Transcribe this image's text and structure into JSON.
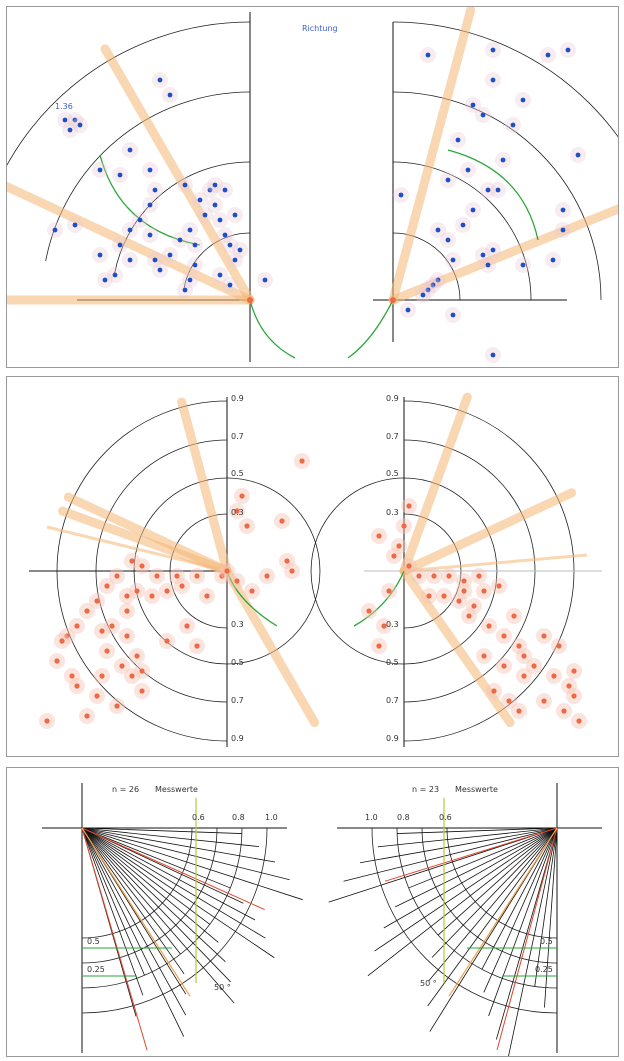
{
  "chart_data": [
    {
      "type": "scatter",
      "title": "Richtung",
      "subtitle_label": "1.36",
      "series": [
        {
          "values": [
            [
              -185,
              -180
            ],
            [
              -180,
              -170
            ],
            [
              -175,
              -180
            ],
            [
              -170,
              -175
            ],
            [
              -150,
              -130
            ],
            [
              -130,
              -125
            ],
            [
              -120,
              -150
            ],
            [
              -100,
              -130
            ],
            [
              -90,
              -220
            ],
            [
              -80,
              -205
            ],
            [
              -100,
              -95
            ],
            [
              -95,
              -110
            ],
            [
              -110,
              -80
            ],
            [
              -120,
              -70
            ],
            [
              -130,
              -55
            ],
            [
              -150,
              -45
            ],
            [
              -145,
              -20
            ],
            [
              -135,
              -25
            ],
            [
              -120,
              -40
            ],
            [
              -100,
              -65
            ],
            [
              -95,
              -40
            ],
            [
              -90,
              -30
            ],
            [
              -80,
              -45
            ],
            [
              -70,
              -60
            ],
            [
              -60,
              -70
            ],
            [
              -55,
              -55
            ],
            [
              -45,
              -85
            ],
            [
              -40,
              -110
            ],
            [
              -35,
              -95
            ],
            [
              -30,
              -80
            ],
            [
              -25,
              -65
            ],
            [
              -20,
              -55
            ],
            [
              -15,
              -40
            ],
            [
              -10,
              -50
            ],
            [
              -55,
              -35
            ],
            [
              -60,
              -20
            ],
            [
              -65,
              -10
            ],
            [
              -30,
              -25
            ],
            [
              -20,
              -15
            ],
            [
              -35,
              -115
            ],
            [
              15,
              -20
            ],
            [
              -65,
              -115
            ],
            [
              -50,
              -100
            ],
            [
              -25,
              -110
            ],
            [
              -15,
              -85
            ],
            [
              -195,
              -70
            ],
            [
              -175,
              -75
            ]
          ]
        },
        {
          "values": [
            [
              35,
              -245
            ],
            [
              100,
              -250
            ],
            [
              155,
              -245
            ],
            [
              175,
              -250
            ],
            [
              130,
              -200
            ],
            [
              100,
              -220
            ],
            [
              80,
              -195
            ],
            [
              120,
              -175
            ],
            [
              90,
              -185
            ],
            [
              65,
              -160
            ],
            [
              75,
              -130
            ],
            [
              55,
              -120
            ],
            [
              110,
              -140
            ],
            [
              105,
              -110
            ],
            [
              95,
              -110
            ],
            [
              45,
              -70
            ],
            [
              55,
              -60
            ],
            [
              60,
              -40
            ],
            [
              70,
              -75
            ],
            [
              80,
              -90
            ],
            [
              90,
              -45
            ],
            [
              95,
              -35
            ],
            [
              100,
              -50
            ],
            [
              130,
              -35
            ],
            [
              160,
              -40
            ],
            [
              45,
              -20
            ],
            [
              40,
              -15
            ],
            [
              35,
              -10
            ],
            [
              30,
              -5
            ],
            [
              185,
              -145
            ],
            [
              170,
              -90
            ],
            [
              15,
              10
            ],
            [
              60,
              15
            ],
            [
              100,
              55
            ],
            [
              8,
              -105
            ],
            [
              170,
              -70
            ]
          ]
        }
      ],
      "rays_deg_left": [
        120,
        155,
        180
      ],
      "rays_deg_right": [
        75,
        22
      ]
    },
    {
      "type": "scatter",
      "tick_labels": [
        "0.9",
        "0.7",
        "0.5",
        "0.3",
        "0.3",
        "0.5",
        "0.7",
        "0.9"
      ],
      "series": [
        {
          "values": [
            [
              75,
              -110
            ],
            [
              15,
              -75
            ],
            [
              10,
              -60
            ],
            [
              20,
              -45
            ],
            [
              55,
              -50
            ],
            [
              60,
              -10
            ],
            [
              65,
              0
            ],
            [
              40,
              5
            ],
            [
              -30,
              5
            ],
            [
              -50,
              5
            ],
            [
              -70,
              5
            ],
            [
              -85,
              -5
            ],
            [
              -95,
              -10
            ],
            [
              -110,
              5
            ],
            [
              -120,
              15
            ],
            [
              -130,
              30
            ],
            [
              -140,
              40
            ],
            [
              -150,
              55
            ],
            [
              -160,
              65
            ],
            [
              -115,
              55
            ],
            [
              -100,
              65
            ],
            [
              -90,
              85
            ],
            [
              -85,
              100
            ],
            [
              -120,
              80
            ],
            [
              -100,
              40
            ],
            [
              -75,
              25
            ],
            [
              -60,
              20
            ],
            [
              -45,
              15
            ],
            [
              -20,
              25
            ],
            [
              -5,
              5
            ],
            [
              0,
              0
            ],
            [
              10,
              10
            ],
            [
              25,
              20
            ],
            [
              -165,
              70
            ],
            [
              -170,
              90
            ],
            [
              -155,
              105
            ],
            [
              -150,
              115
            ],
            [
              -130,
              125
            ],
            [
              -110,
              135
            ],
            [
              -140,
              145
            ],
            [
              -180,
              150
            ],
            [
              -85,
              120
            ],
            [
              -60,
              70
            ],
            [
              -40,
              55
            ],
            [
              -30,
              75
            ],
            [
              -95,
              105
            ],
            [
              -105,
              95
            ],
            [
              -125,
              105
            ],
            [
              -125,
              60
            ],
            [
              -100,
              25
            ],
            [
              -90,
              20
            ]
          ]
        },
        {
          "values": [
            [
              5,
              -65
            ],
            [
              0,
              -45
            ],
            [
              -5,
              -25
            ],
            [
              -25,
              -35
            ],
            [
              -10,
              -15
            ],
            [
              5,
              -5
            ],
            [
              15,
              5
            ],
            [
              30,
              5
            ],
            [
              45,
              5
            ],
            [
              60,
              10
            ],
            [
              75,
              5
            ],
            [
              80,
              20
            ],
            [
              60,
              20
            ],
            [
              40,
              25
            ],
            [
              25,
              25
            ],
            [
              70,
              35
            ],
            [
              55,
              30
            ],
            [
              95,
              15
            ],
            [
              100,
              65
            ],
            [
              115,
              75
            ],
            [
              120,
              85
            ],
            [
              130,
              95
            ],
            [
              150,
              105
            ],
            [
              165,
              115
            ],
            [
              170,
              125
            ],
            [
              120,
              105
            ],
            [
              100,
              95
            ],
            [
              80,
              85
            ],
            [
              90,
              120
            ],
            [
              105,
              130
            ],
            [
              115,
              140
            ],
            [
              140,
              130
            ],
            [
              160,
              140
            ],
            [
              175,
              150
            ],
            [
              170,
              100
            ],
            [
              155,
              75
            ],
            [
              140,
              65
            ],
            [
              -15,
              20
            ],
            [
              -35,
              40
            ],
            [
              -20,
              55
            ],
            [
              -25,
              75
            ],
            [
              85,
              55
            ],
            [
              65,
              45
            ],
            [
              110,
              45
            ]
          ]
        }
      ]
    },
    {
      "type": "line",
      "left": {
        "label": "n = 26",
        "label2": "Messwerte",
        "ticks": [
          "0.6",
          "0.8",
          "1.0"
        ],
        "markers": [
          "0.5",
          "0.25"
        ],
        "angle_label": "50 °"
      },
      "right": {
        "label": "n = 23",
        "label2": "Messwerte",
        "ticks": [
          "1.0",
          "0.8",
          "0.6"
        ],
        "markers": [
          "0.5",
          "0.25"
        ],
        "angle_label": "50 °"
      }
    }
  ]
}
